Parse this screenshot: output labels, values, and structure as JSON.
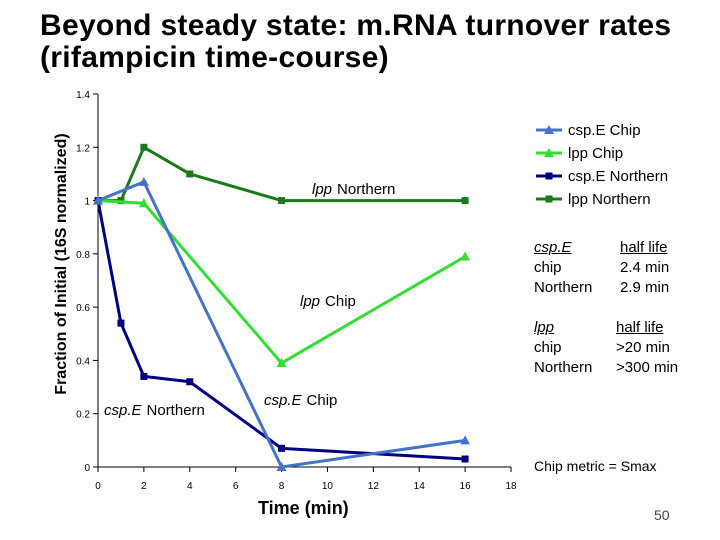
{
  "slide": {
    "title_line1": "Beyond steady state: m.RNA turnover rates",
    "title_line2": "(rifampicin time-course)",
    "page_number": "50",
    "metric_note": "Chip metric = Smax"
  },
  "annotations": {
    "lpp_northern_italic": "lpp",
    "lpp_northern_rest": "Northern",
    "lpp_chip_italic": "lpp",
    "lpp_chip_rest": "Chip",
    "csp_northern_italic": "csp.E",
    "csp_northern_rest": "Northern",
    "csp_chip_italic": "csp.E",
    "csp_chip_rest": "Chip"
  },
  "half_life": {
    "csp": {
      "gene": "csp.E",
      "line2": "chip",
      "line3": "Northern",
      "header": "half life",
      "chip": "2.4 min",
      "northern": "2.9 min"
    },
    "lpp": {
      "gene": "lpp",
      "line2": "chip",
      "line3": "Northern",
      "header": "half life",
      "chip": ">20 min",
      "northern": ">300 min"
    }
  },
  "chart_data": {
    "type": "line",
    "title": "",
    "xlabel": "Time (min)",
    "ylabel": "Fraction of Initial (16S normalized)",
    "xlim": [
      0,
      18
    ],
    "ylim": [
      0,
      1.4
    ],
    "xticks": [
      "0",
      "2",
      "4",
      "6",
      "8",
      "10",
      "12",
      "14",
      "16",
      "18"
    ],
    "yticks": [
      "0",
      "0.2",
      "0.4",
      "0.6",
      "0.8",
      "1",
      "1.2",
      "1.4"
    ],
    "legend_position": "top-right",
    "series": [
      {
        "name": "csp.E Chip",
        "color": "#4472c4",
        "marker": "triangle",
        "x": [
          0,
          2,
          8,
          16
        ],
        "y": [
          1.0,
          1.07,
          0.0,
          0.1
        ]
      },
      {
        "name": "lpp Chip",
        "color": "#33dd33",
        "marker": "triangle",
        "x": [
          0,
          2,
          8,
          16
        ],
        "y": [
          1.0,
          0.99,
          0.39,
          0.79
        ]
      },
      {
        "name": "csp.E Northern",
        "color": "#000080",
        "marker": "square",
        "x": [
          0,
          1,
          2,
          4,
          8,
          16
        ],
        "y": [
          1.0,
          0.54,
          0.34,
          0.32,
          0.07,
          0.03
        ]
      },
      {
        "name": "lpp Northern",
        "color": "#1a7a1a",
        "marker": "square",
        "x": [
          0,
          1,
          2,
          4,
          8,
          16
        ],
        "y": [
          1.0,
          1.0,
          1.2,
          1.1,
          1.0,
          1.0
        ]
      }
    ]
  }
}
